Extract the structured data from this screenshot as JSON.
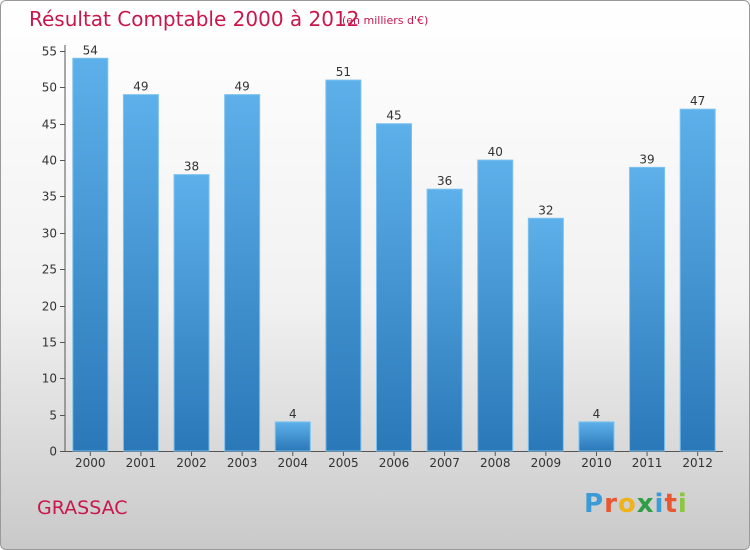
{
  "chart_data": {
    "type": "bar",
    "title": "Résultat Comptable 2000 à 2012",
    "subtitle": "(en milliers d'€)",
    "categories": [
      "2000",
      "2001",
      "2002",
      "2003",
      "2004",
      "2005",
      "2006",
      "2007",
      "2008",
      "2009",
      "2010",
      "2011",
      "2012"
    ],
    "values": [
      54,
      49,
      38,
      49,
      4,
      51,
      45,
      36,
      40,
      32,
      4,
      39,
      47
    ],
    "yticks": [
      0,
      5,
      10,
      15,
      20,
      25,
      30,
      35,
      40,
      45,
      50,
      55
    ],
    "ylim": [
      0,
      55
    ],
    "xlabel": "",
    "ylabel": "",
    "grid": false,
    "bar_color_top": "#5db0ea",
    "bar_color_bottom": "#2b78b8"
  },
  "footer": {
    "commune": "GRASSAC",
    "brand_letters": [
      "P",
      "r",
      "o",
      "x",
      "i",
      "t",
      "i"
    ],
    "brand_colors": [
      "#3a9bd6",
      "#e8572f",
      "#f0b21a",
      "#2f9e46",
      "#3a9bd6",
      "#e8572f",
      "#8cc63f"
    ]
  },
  "colors": {
    "accent": "#c8174b"
  }
}
